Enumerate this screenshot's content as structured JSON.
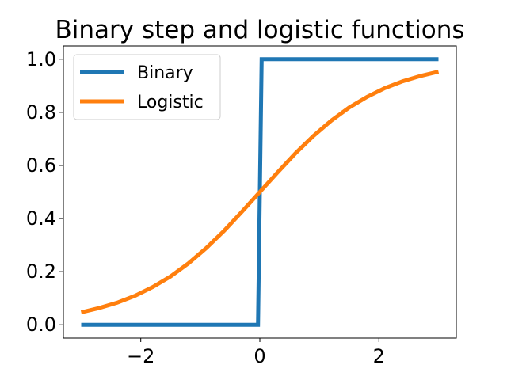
{
  "chart_data": {
    "type": "line",
    "title": "Binary step and logistic functions",
    "xlabel": "",
    "ylabel": "",
    "xlim": [
      -3.3,
      3.3
    ],
    "ylim": [
      -0.05,
      1.05
    ],
    "x_ticks": [
      {
        "value": -2,
        "label": "−2"
      },
      {
        "value": 0,
        "label": "0"
      },
      {
        "value": 2,
        "label": "2"
      }
    ],
    "y_ticks": [
      {
        "value": 0.0,
        "label": "0.0"
      },
      {
        "value": 0.2,
        "label": "0.2"
      },
      {
        "value": 0.4,
        "label": "0.4"
      },
      {
        "value": 0.6,
        "label": "0.6"
      },
      {
        "value": 0.8,
        "label": "0.8"
      },
      {
        "value": 1.0,
        "label": "1.0"
      }
    ],
    "grid": false,
    "legend": "top-left",
    "series": [
      {
        "name": "Binary",
        "color": "#1f77b4",
        "x": [
          -3.0,
          -0.03,
          0.03,
          3.0
        ],
        "y": [
          0.0,
          0.0,
          1.0,
          1.0
        ]
      },
      {
        "name": "Logistic",
        "color": "#ff7f0e",
        "x": [
          -3.0,
          -2.7,
          -2.4,
          -2.1,
          -1.8,
          -1.5,
          -1.2,
          -0.9,
          -0.6,
          -0.3,
          0.0,
          0.3,
          0.6,
          0.9,
          1.2,
          1.5,
          1.8,
          2.1,
          2.4,
          2.7,
          3.0
        ],
        "y": [
          0.047,
          0.063,
          0.083,
          0.109,
          0.142,
          0.182,
          0.231,
          0.289,
          0.354,
          0.426,
          0.5,
          0.574,
          0.646,
          0.711,
          0.769,
          0.818,
          0.858,
          0.891,
          0.917,
          0.937,
          0.953
        ]
      }
    ]
  }
}
